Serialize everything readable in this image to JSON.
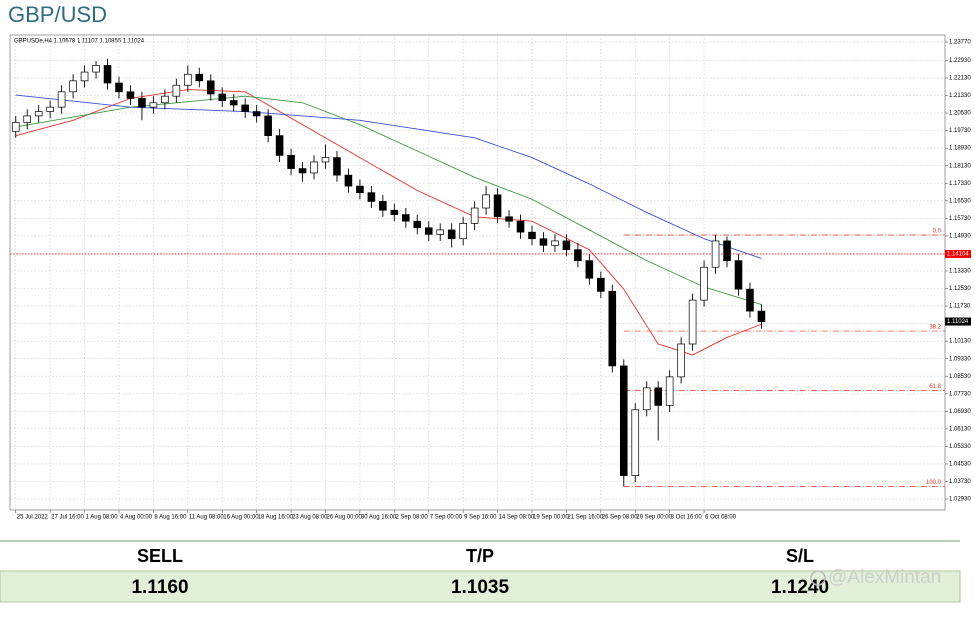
{
  "header": {
    "title": "GBP/USD"
  },
  "chart_data": {
    "type": "candlestick",
    "symbol_header": "GBPUSDe,H4  1.10678 1.11107 1.10855 1.11024",
    "open": [
      1.197,
      1.201,
      1.204,
      1.206,
      1.208,
      1.215,
      1.22,
      1.224,
      1.227,
      1.219,
      1.215,
      1.212,
      1.208,
      1.21,
      1.213,
      1.218,
      1.223,
      1.22,
      1.214,
      1.211,
      1.209,
      1.206,
      1.204,
      1.195,
      1.186,
      1.18,
      1.178,
      1.183,
      1.185,
      1.177,
      1.172,
      1.169,
      1.165,
      1.161,
      1.159,
      1.156,
      1.153,
      1.15,
      1.152,
      1.148,
      1.155,
      1.162,
      1.168,
      1.158,
      1.156,
      1.151,
      1.148,
      1.145,
      1.147,
      1.143,
      1.138,
      1.13,
      1.124,
      1.09,
      1.04,
      1.07,
      1.08,
      1.072,
      1.085,
      1.1,
      1.12,
      1.135,
      1.147,
      1.138,
      1.125,
      1.115
    ],
    "high": [
      1.204,
      1.207,
      1.209,
      1.211,
      1.218,
      1.223,
      1.227,
      1.229,
      1.23,
      1.222,
      1.218,
      1.215,
      1.213,
      1.216,
      1.221,
      1.227,
      1.226,
      1.223,
      1.217,
      1.214,
      1.212,
      1.209,
      1.207,
      1.198,
      1.189,
      1.183,
      1.186,
      1.191,
      1.188,
      1.18,
      1.175,
      1.172,
      1.168,
      1.164,
      1.162,
      1.159,
      1.156,
      1.155,
      1.155,
      1.158,
      1.165,
      1.172,
      1.171,
      1.161,
      1.159,
      1.154,
      1.151,
      1.15,
      1.15,
      1.146,
      1.141,
      1.133,
      1.127,
      1.093,
      1.073,
      1.083,
      1.083,
      1.088,
      1.103,
      1.123,
      1.138,
      1.1497,
      1.149,
      1.141,
      1.128,
      1.118
    ],
    "low": [
      1.194,
      1.198,
      1.201,
      1.203,
      1.205,
      1.212,
      1.217,
      1.221,
      1.216,
      1.212,
      1.209,
      1.202,
      1.205,
      1.207,
      1.21,
      1.215,
      1.217,
      1.211,
      1.208,
      1.206,
      1.203,
      1.201,
      1.192,
      1.183,
      1.177,
      1.174,
      1.175,
      1.18,
      1.174,
      1.169,
      1.166,
      1.162,
      1.158,
      1.156,
      1.153,
      1.15,
      1.147,
      1.147,
      1.144,
      1.145,
      1.152,
      1.159,
      1.155,
      1.153,
      1.148,
      1.145,
      1.142,
      1.142,
      1.14,
      1.135,
      1.127,
      1.121,
      1.087,
      1.035,
      1.037,
      1.067,
      1.056,
      1.069,
      1.082,
      1.097,
      1.117,
      1.132,
      1.135,
      1.122,
      1.112,
      1.107
    ],
    "close": [
      1.201,
      1.204,
      1.206,
      1.208,
      1.215,
      1.22,
      1.224,
      1.227,
      1.219,
      1.215,
      1.212,
      1.208,
      1.21,
      1.213,
      1.218,
      1.223,
      1.22,
      1.214,
      1.211,
      1.209,
      1.206,
      1.204,
      1.195,
      1.186,
      1.18,
      1.178,
      1.183,
      1.185,
      1.177,
      1.172,
      1.169,
      1.165,
      1.161,
      1.159,
      1.156,
      1.153,
      1.15,
      1.152,
      1.148,
      1.155,
      1.162,
      1.168,
      1.158,
      1.156,
      1.151,
      1.148,
      1.145,
      1.147,
      1.143,
      1.138,
      1.13,
      1.124,
      1.09,
      1.04,
      1.07,
      1.08,
      1.072,
      1.085,
      1.1,
      1.12,
      1.135,
      1.147,
      1.138,
      1.125,
      1.115,
      1.1102
    ],
    "color_up": "#ffffff",
    "color_down": "#000000",
    "xlim": [
      -0.5,
      81
    ],
    "xticks": [
      {
        "value": 0,
        "label": "25 Jul 2022"
      },
      {
        "value": 3,
        "label": "27 Jul 16:00"
      },
      {
        "value": 6,
        "label": "1 Aug 08:00"
      },
      {
        "value": 9,
        "label": "4 Aug 00:00"
      },
      {
        "value": 12,
        "label": "8 Aug 16:00"
      },
      {
        "value": 15,
        "label": "11 Aug 08:00"
      },
      {
        "value": 18,
        "label": "16 Aug 00:00"
      },
      {
        "value": 21,
        "label": "18 Aug 16:00"
      },
      {
        "value": 24,
        "label": "23 Aug 08:00"
      },
      {
        "value": 27,
        "label": "26 Aug 00:00"
      },
      {
        "value": 30,
        "label": "30 Aug 16:00"
      },
      {
        "value": 33,
        "label": "2 Sep 08:00"
      },
      {
        "value": 36,
        "label": "7 Sep 00:00"
      },
      {
        "value": 39,
        "label": "9 Sep 16:00"
      },
      {
        "value": 42,
        "label": "14 Sep 08:00"
      },
      {
        "value": 45,
        "label": "19 Sep 00:00"
      },
      {
        "value": 48,
        "label": "21 Sep 16:00"
      },
      {
        "value": 51,
        "label": "26 Sep 08:00"
      },
      {
        "value": 54,
        "label": "29 Sep 00:00"
      },
      {
        "value": 57,
        "label": "3 Oct 16:00"
      },
      {
        "value": 60,
        "label": "6 Oct 08:00"
      }
    ],
    "ylim": [
      1.0243,
      1.2409
    ],
    "yticks": [
      {
        "value": 1.2377,
        "label": "1.23770"
      },
      {
        "value": 1.2293,
        "label": "1.22930"
      },
      {
        "value": 1.2213,
        "label": "1.22130"
      },
      {
        "value": 1.2133,
        "label": "1.21330"
      },
      {
        "value": 1.2053,
        "label": "1.20530"
      },
      {
        "value": 1.1973,
        "label": "1.19730"
      },
      {
        "value": 1.1893,
        "label": "1.18930"
      },
      {
        "value": 1.1813,
        "label": "1.18130"
      },
      {
        "value": 1.1733,
        "label": "1.17330"
      },
      {
        "value": 1.1653,
        "label": "1.16530"
      },
      {
        "value": 1.1573,
        "label": "1.15730"
      },
      {
        "value": 1.1493,
        "label": "1.14930"
      },
      {
        "value": 1.1413,
        "label": "1.14130"
      },
      {
        "value": 1.1333,
        "label": "1.13330"
      },
      {
        "value": 1.1253,
        "label": "1.12530"
      },
      {
        "value": 1.1173,
        "label": "1.11730"
      },
      {
        "value": 1.1093,
        "label": "1.10930"
      },
      {
        "value": 1.1013,
        "label": "1.10130"
      },
      {
        "value": 1.0933,
        "label": "1.09330"
      },
      {
        "value": 1.0853,
        "label": "1.08530"
      },
      {
        "value": 1.0773,
        "label": "1.07730"
      },
      {
        "value": 1.0693,
        "label": "1.06930"
      },
      {
        "value": 1.0613,
        "label": "1.06130"
      },
      {
        "value": 1.0533,
        "label": "1.05330"
      },
      {
        "value": 1.0453,
        "label": "1.04530"
      },
      {
        "value": 1.0373,
        "label": "1.03730"
      },
      {
        "value": 1.0293,
        "label": "1.02930"
      }
    ],
    "grid": true,
    "ma": [
      {
        "color": "#e8332a",
        "x": [
          0,
          5,
          10,
          15,
          20,
          25,
          30,
          35,
          40,
          45,
          50,
          53,
          56,
          59,
          62,
          65
        ],
        "values": [
          1.195,
          1.202,
          1.212,
          1.216,
          1.215,
          1.2,
          1.185,
          1.17,
          1.158,
          1.156,
          1.143,
          1.125,
          1.1,
          1.095,
          1.103,
          1.109
        ]
      },
      {
        "color": "#3c9a3c",
        "x": [
          0,
          10,
          20,
          25,
          30,
          35,
          40,
          45,
          50,
          55,
          60,
          65
        ],
        "values": [
          1.199,
          1.208,
          1.213,
          1.21,
          1.2,
          1.188,
          1.176,
          1.166,
          1.152,
          1.138,
          1.126,
          1.118
        ]
      },
      {
        "color": "#3a4fd6",
        "x": [
          0,
          10,
          20,
          30,
          40,
          45,
          50,
          55,
          60,
          65
        ],
        "values": [
          1.2135,
          1.208,
          1.206,
          1.202,
          1.194,
          1.185,
          1.173,
          1.16,
          1.148,
          1.139
        ]
      }
    ],
    "hlines": [
      {
        "value": 1.14104,
        "color": "#ff0000"
      }
    ],
    "current_price": 1.11024,
    "fib": {
      "color": "#e8332a",
      "x_start": 53,
      "levels": [
        {
          "value": 1.1497,
          "label": "0.0"
        },
        {
          "value": 1.1059,
          "label": "38.2"
        },
        {
          "value": 1.0788,
          "label": "61.8"
        },
        {
          "value": 1.035,
          "label": "100.0"
        }
      ]
    }
  },
  "table": {
    "header": [
      "SELL",
      "T/P",
      "S/L"
    ],
    "rows": [
      [
        "1.1160",
        "1.1035",
        "1.1240"
      ]
    ]
  },
  "watermark": "@AlexMintan"
}
